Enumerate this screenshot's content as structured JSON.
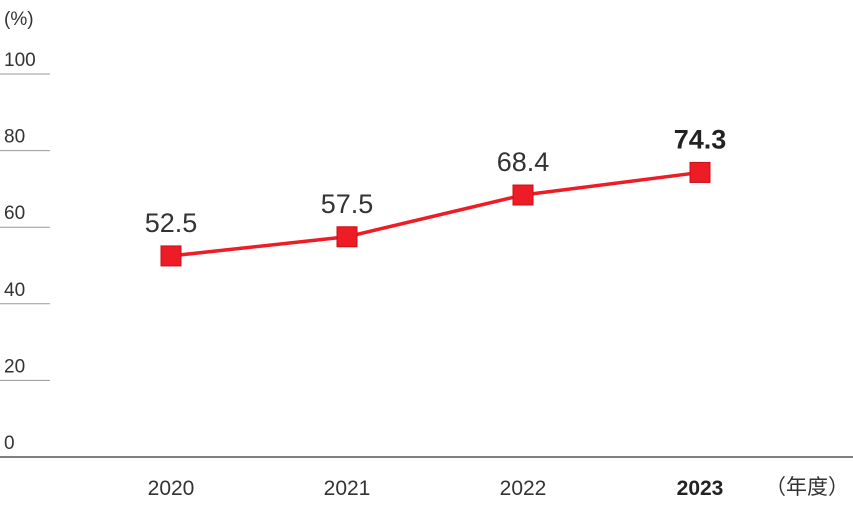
{
  "chart_data": {
    "type": "line",
    "categories": [
      "2020",
      "2021",
      "2022",
      "2023"
    ],
    "series": [
      {
        "values": [
          52.5,
          57.5,
          68.4,
          74.3
        ]
      }
    ],
    "value_labels": [
      "52.5",
      "57.5",
      "68.4",
      "74.3"
    ],
    "y_unit": "(%)",
    "x_unit": "（年度）",
    "ylim": [
      0,
      100
    ],
    "yticks": [
      "0",
      "20",
      "40",
      "60",
      "80",
      "100"
    ],
    "highlight_category": "2023",
    "grid": false,
    "colors": {
      "line": "#ee1c25",
      "axis": "#555555",
      "tick": "#999999"
    }
  }
}
